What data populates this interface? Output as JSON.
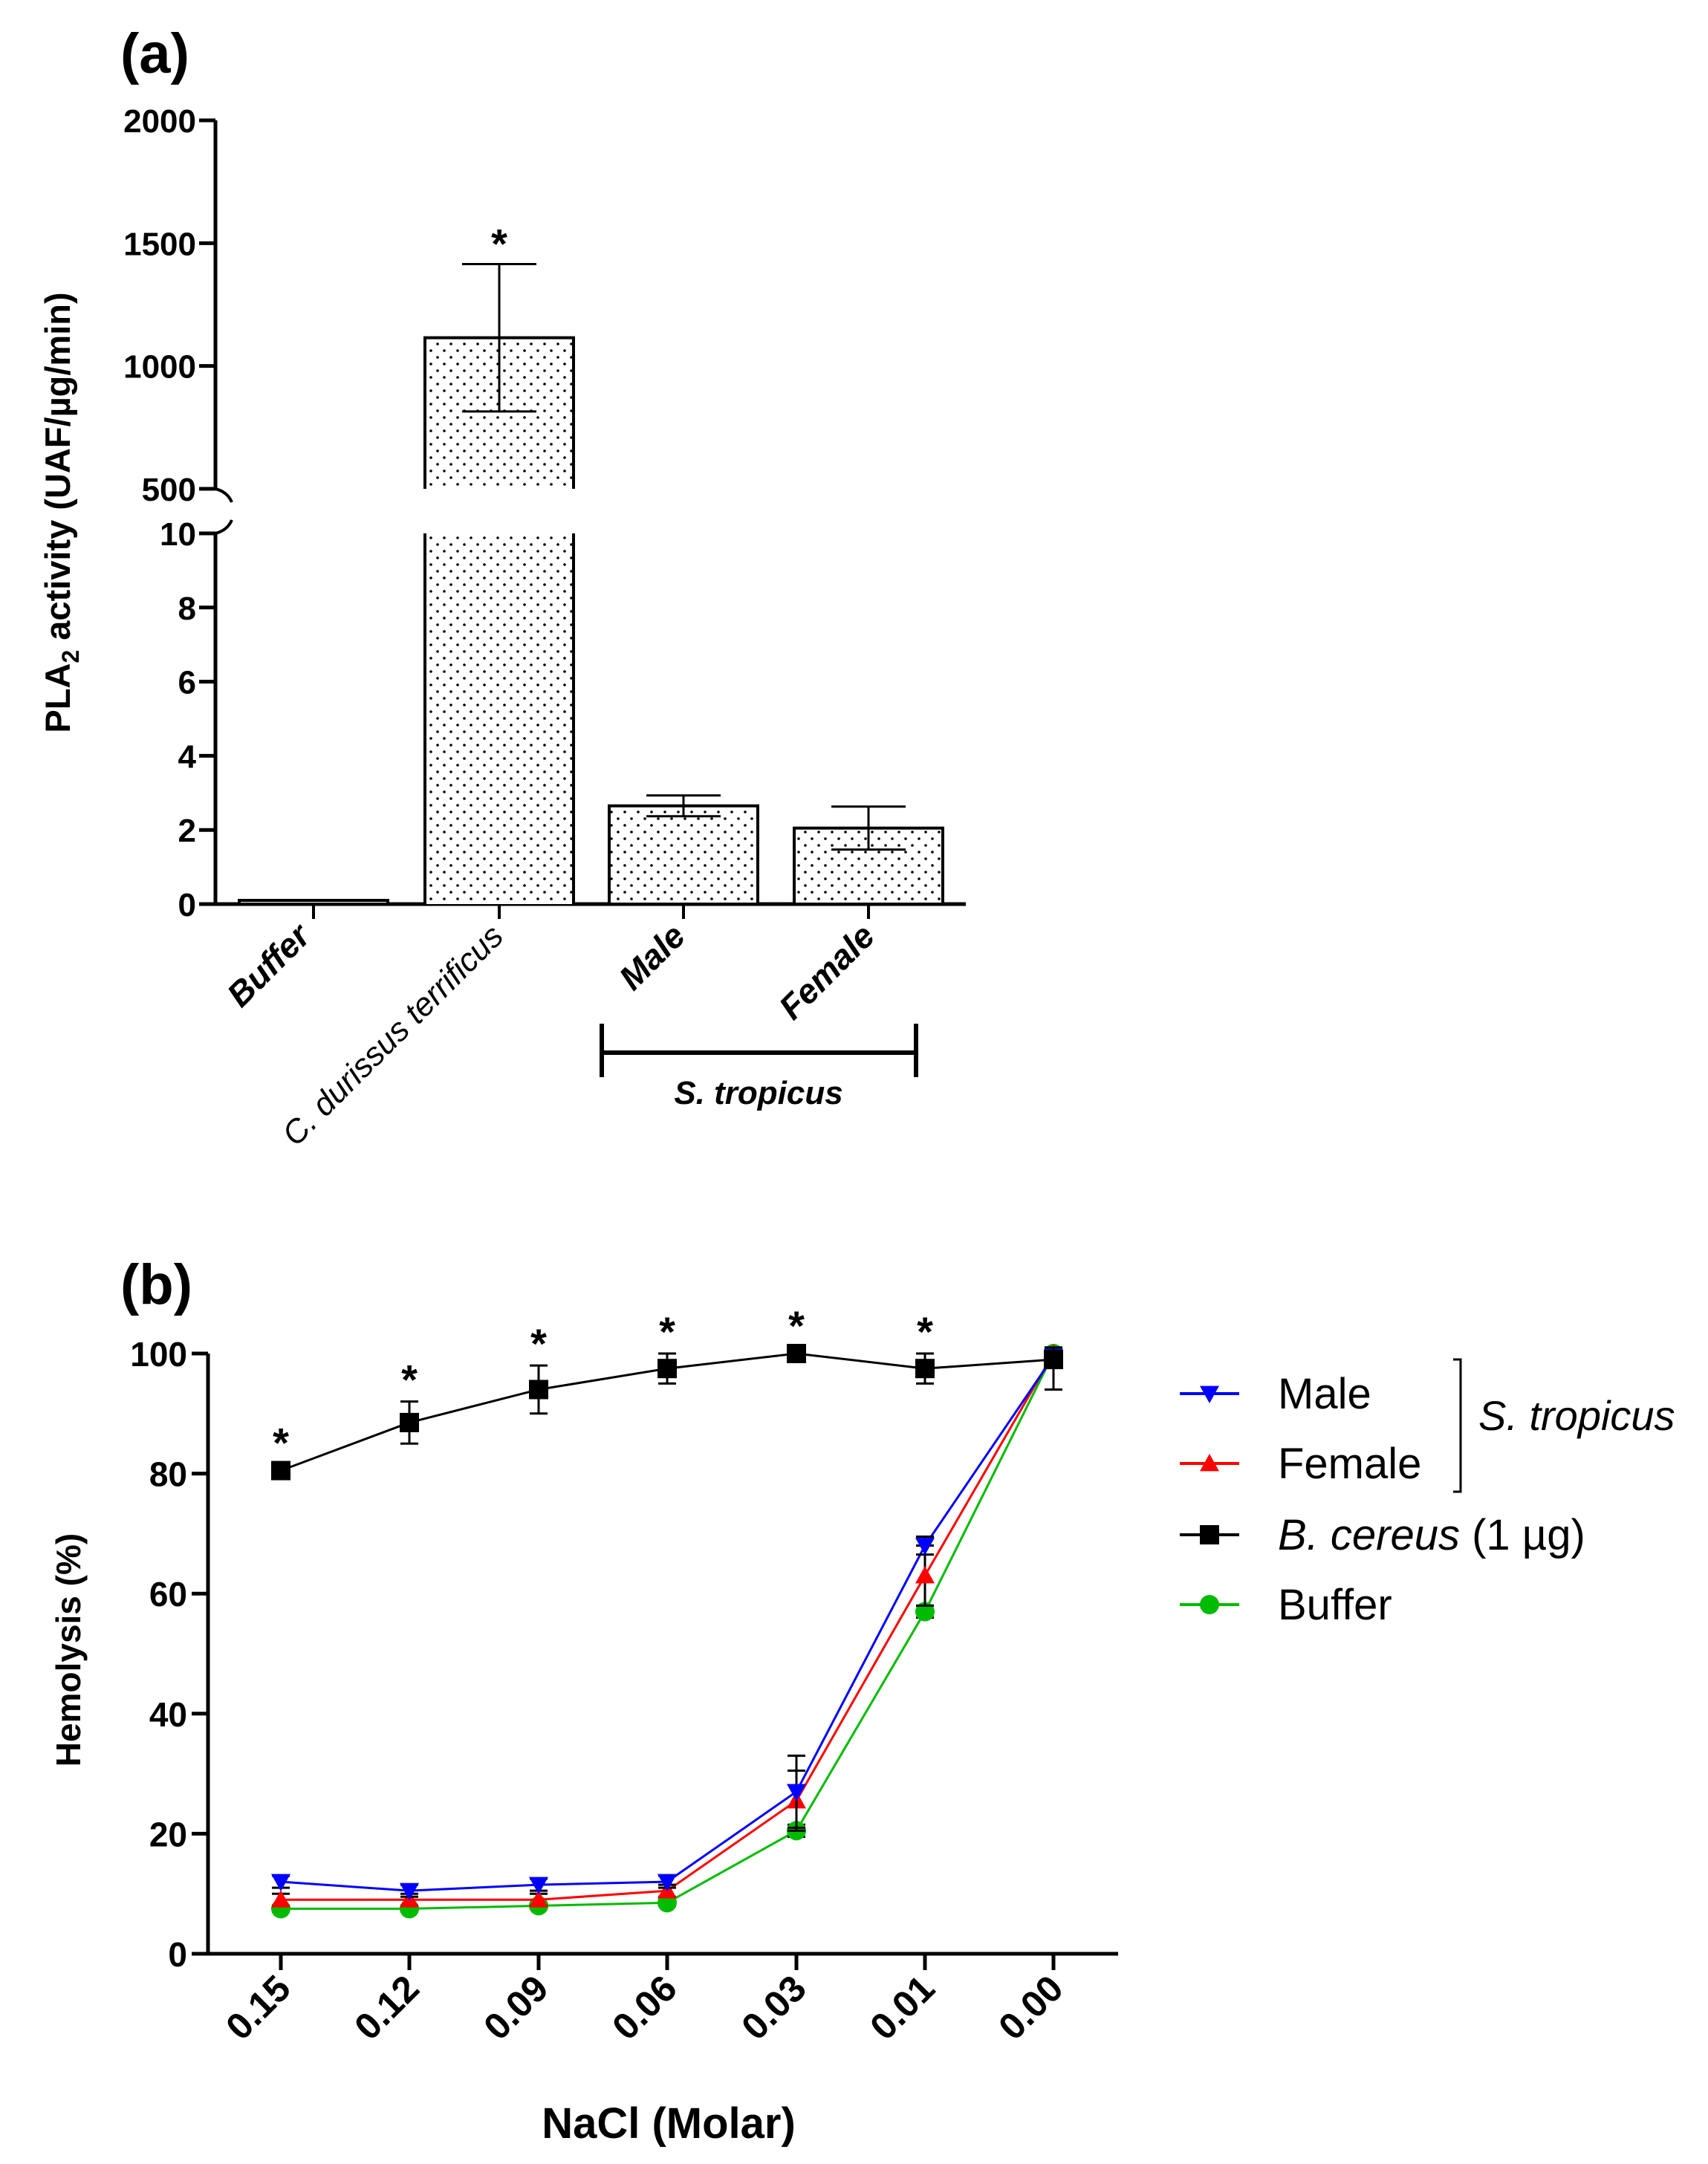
{
  "chart_data": [
    {
      "panel_label": "(a)",
      "type": "bar",
      "ylabel_main": "PLA",
      "ylabel_sub": "2",
      "ylabel_rest": " activity (UAF/µg/min)",
      "axis_break": true,
      "upper_ticks": [
        "500",
        "1000",
        "1500",
        "2000"
      ],
      "upper_range": [
        500,
        2000
      ],
      "lower_ticks": [
        "0",
        "2",
        "4",
        "6",
        "8",
        "10"
      ],
      "lower_range": [
        0,
        10
      ],
      "categories": [
        "Buffer",
        "C. durissus terrificus",
        "Male",
        "Female"
      ],
      "values": [
        0.1,
        1115,
        2.65,
        2.05
      ],
      "errors": [
        0.0,
        300,
        0.28,
        0.58
      ],
      "significance": [
        "",
        "*",
        "",
        ""
      ],
      "group_label": "S. tropicus",
      "group_members": [
        "Male",
        "Female"
      ]
    },
    {
      "panel_label": "(b)",
      "type": "line",
      "xlabel": "NaCl (Molar)",
      "ylabel": "Hemolysis (%)",
      "x": [
        "0.15",
        "0.12",
        "0.09",
        "0.06",
        "0.03",
        "0.01",
        "0.00"
      ],
      "yticks": [
        "0",
        "20",
        "40",
        "60",
        "80",
        "100"
      ],
      "ylim": [
        0,
        100
      ],
      "series": [
        {
          "name": "Male",
          "color": "#0000ff",
          "marker": "triangle-down",
          "values": [
            12,
            10.5,
            11.5,
            12,
            27,
            68,
            99.5
          ],
          "errors": [
            1,
            1,
            1,
            1,
            6,
            1.5,
            1
          ]
        },
        {
          "name": "Female",
          "color": "#ff0000",
          "marker": "triangle-up",
          "values": [
            9,
            9,
            9,
            10.5,
            25.5,
            63,
            100
          ],
          "errors": [
            1,
            1,
            1,
            1,
            5,
            5,
            1
          ]
        },
        {
          "name": "B. cereus",
          "name_suffix": " (1 µg)",
          "color": "#000000",
          "marker": "square",
          "values": [
            80.5,
            88.5,
            94,
            97.5,
            100,
            97.5,
            99
          ],
          "errors": [
            1,
            3.5,
            4,
            2.5,
            1,
            2.5,
            5
          ]
        },
        {
          "name": "Buffer",
          "color": "#00bb00",
          "marker": "circle",
          "values": [
            7.5,
            7.5,
            8,
            8.5,
            20.5,
            57,
            100
          ],
          "errors": [
            0.5,
            0.5,
            0.5,
            0.5,
            1,
            1,
            1
          ]
        }
      ],
      "significance": [
        "*",
        "*",
        "*",
        "*",
        "*",
        "*",
        ""
      ],
      "legend_group_label": "S. tropicus",
      "legend_group_members": [
        "Male",
        "Female"
      ],
      "legend_position": "right"
    }
  ]
}
